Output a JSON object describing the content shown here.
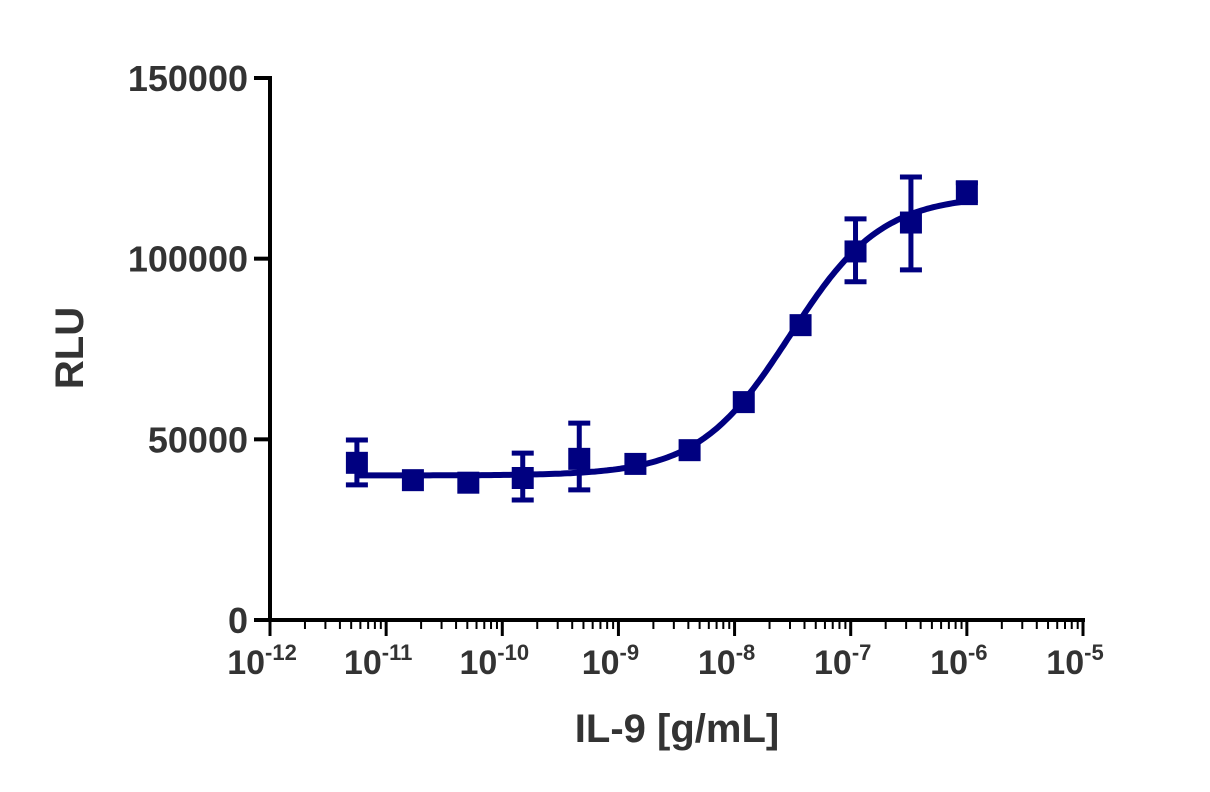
{
  "chart_data": {
    "type": "scatter",
    "title": "",
    "xlabel": "IL-9 [g/mL]",
    "ylabel": "RLU",
    "xscale": "log",
    "xlim": [
      1e-12,
      1e-05
    ],
    "ylim": [
      0,
      150000
    ],
    "x_tick_exponents": [
      -12,
      -11,
      -10,
      -9,
      -8,
      -7,
      -6,
      -5
    ],
    "x_tick_base": "10",
    "y_ticks": [
      0,
      50000,
      100000,
      150000
    ],
    "grid": false,
    "color": "#000080",
    "marker": "square",
    "points": [
      {
        "x": 5.6e-12,
        "y": 43500,
        "err_low": 37400,
        "err_high": 49800
      },
      {
        "x": 1.7e-11,
        "y": 38700
      },
      {
        "x": 5.1e-11,
        "y": 38000
      },
      {
        "x": 1.5e-10,
        "y": 39300,
        "err_low": 33200,
        "err_high": 46200
      },
      {
        "x": 4.6e-10,
        "y": 44600,
        "err_low": 36000,
        "err_high": 54500
      },
      {
        "x": 1.4e-09,
        "y": 43200
      },
      {
        "x": 4.1e-09,
        "y": 47000
      },
      {
        "x": 1.2e-08,
        "y": 60300
      },
      {
        "x": 3.7e-08,
        "y": 81600
      },
      {
        "x": 1.1e-07,
        "y": 102000,
        "err_low": 93600,
        "err_high": 111000
      },
      {
        "x": 3.3e-07,
        "y": 110000,
        "err_low": 96900,
        "err_high": 122600
      },
      {
        "x": 1e-06,
        "y": 118500,
        "err_low": 115500,
        "err_high": 121000
      }
    ],
    "fit": {
      "model": "4PL",
      "bottom": 40000,
      "top": 117500,
      "ec50": 3e-08,
      "hill": 1.1
    }
  }
}
